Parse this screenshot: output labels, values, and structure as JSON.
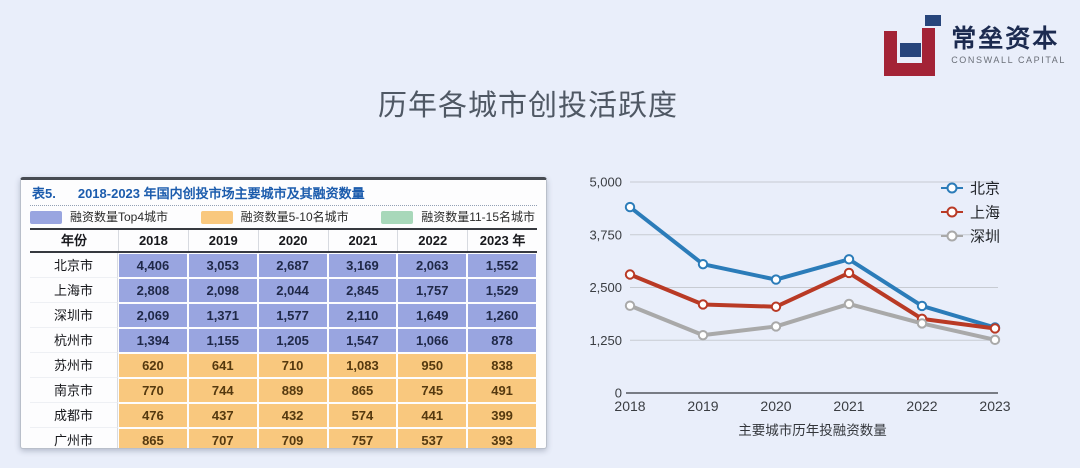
{
  "page": {
    "background": "#e9eefa",
    "title": "历年各城市创投活跃度"
  },
  "logo": {
    "cn": "常垒资本",
    "en": "CONSWALL CAPITAL",
    "red": "#a32336",
    "blue": "#27457b"
  },
  "table": {
    "caption_prefix": "表5.",
    "caption": "2018-2023 年国内创投市场主要城市及其融资数量",
    "legend": [
      {
        "label": "融资数量Top4城市",
        "color": "#99a5e0"
      },
      {
        "label": "融资数量5-10名城市",
        "color": "#f9c87e"
      },
      {
        "label": "融资数量11-15名城市",
        "color": "#a8d8ba"
      }
    ],
    "group_colors": {
      "top4": "#99a5e0",
      "rank5_10": "#f9c87e",
      "rank11_15": "#a8d8ba"
    },
    "columns": [
      "年份",
      "2018",
      "2019",
      "2020",
      "2021",
      "2022",
      "2023 年"
    ],
    "rows": [
      {
        "city": "北京市",
        "group": "top4",
        "values": [
          "4,406",
          "3,053",
          "2,687",
          "3,169",
          "2,063",
          "1,552"
        ]
      },
      {
        "city": "上海市",
        "group": "top4",
        "values": [
          "2,808",
          "2,098",
          "2,044",
          "2,845",
          "1,757",
          "1,529"
        ]
      },
      {
        "city": "深圳市",
        "group": "top4",
        "values": [
          "2,069",
          "1,371",
          "1,577",
          "2,110",
          "1,649",
          "1,260"
        ]
      },
      {
        "city": "杭州市",
        "group": "top4",
        "values": [
          "1,394",
          "1,155",
          "1,205",
          "1,547",
          "1,066",
          "878"
        ]
      },
      {
        "city": "苏州市",
        "group": "rank5_10",
        "values": [
          "620",
          "641",
          "710",
          "1,083",
          "950",
          "838"
        ]
      },
      {
        "city": "南京市",
        "group": "rank5_10",
        "values": [
          "770",
          "744",
          "889",
          "865",
          "745",
          "491"
        ]
      },
      {
        "city": "成都市",
        "group": "rank5_10",
        "values": [
          "476",
          "437",
          "432",
          "574",
          "441",
          "399"
        ]
      },
      {
        "city": "广州市",
        "group": "rank5_10",
        "values": [
          "865",
          "707",
          "709",
          "757",
          "537",
          "393"
        ]
      }
    ]
  },
  "chart_data": {
    "type": "line",
    "x": [
      2018,
      2019,
      2020,
      2021,
      2022,
      2023
    ],
    "series": [
      {
        "name": "北京",
        "color": "#2b7cb9",
        "values": [
          4406,
          3053,
          2687,
          3169,
          2063,
          1552
        ]
      },
      {
        "name": "上海",
        "color": "#b93a25",
        "values": [
          2808,
          2098,
          2044,
          2845,
          1757,
          1529
        ]
      },
      {
        "name": "深圳",
        "color": "#a9a9a9",
        "values": [
          2069,
          1371,
          1577,
          2110,
          1649,
          1260
        ]
      }
    ],
    "xlabel": "主要城市历年投融资数量",
    "ylim": [
      0,
      5000
    ],
    "yticks": [
      0,
      1250,
      2500,
      3750,
      5000
    ],
    "ytick_labels": [
      "0",
      "1,250",
      "2,500",
      "3,750",
      "5,000"
    ],
    "grid": true,
    "legend_position": "top-right",
    "marker": "circle-open",
    "gridline_color": "#c7cbd2",
    "axis_color": "#53575d",
    "tick_label_color": "#3a3d42"
  }
}
